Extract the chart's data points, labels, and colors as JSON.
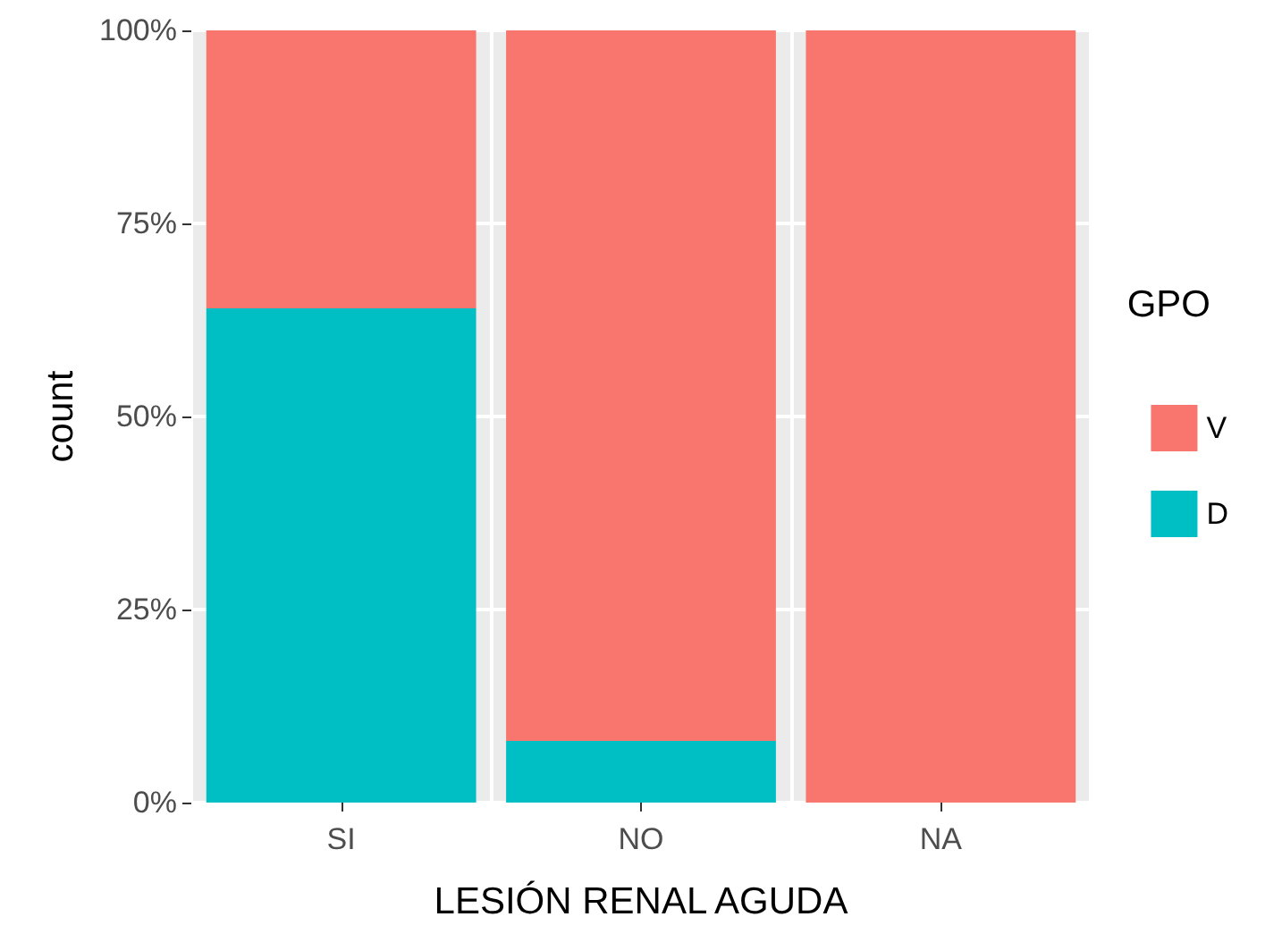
{
  "chart_data": {
    "type": "bar",
    "xlabel": "LESIÓN RENAL AGUDA",
    "ylabel": "count",
    "legend_title": "GPO",
    "categories": [
      "SI",
      "NO",
      "NA"
    ],
    "stacked": true,
    "series": [
      {
        "name": "D",
        "color": "#00bfc4",
        "values": [
          64,
          8,
          0
        ]
      },
      {
        "name": "V",
        "color": "#f8766d",
        "values": [
          36,
          92,
          100
        ]
      }
    ],
    "ylim": [
      0,
      100
    ],
    "yticks": [
      {
        "value": 0,
        "label": "0%"
      },
      {
        "value": 25,
        "label": "25%"
      },
      {
        "value": 50,
        "label": "50%"
      },
      {
        "value": 75,
        "label": "75%"
      },
      {
        "value": 100,
        "label": "100%"
      }
    ],
    "grid": true,
    "legend": "right"
  }
}
